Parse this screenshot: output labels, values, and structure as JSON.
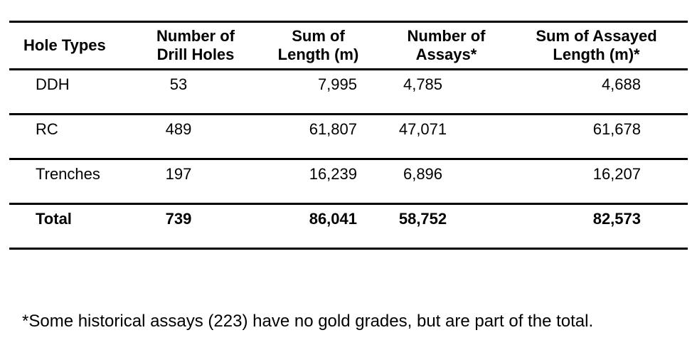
{
  "table": {
    "columns": [
      {
        "label_line1": "Hole Types"
      },
      {
        "label_line1": "Number of",
        "label_line2": "Drill Holes"
      },
      {
        "label_line1": "Sum of",
        "label_line2": "Length (m)"
      },
      {
        "label_line1": "Number of",
        "label_line2": "Assays*"
      },
      {
        "label_line1": "Sum of Assayed",
        "label_line2": "Length (m)*"
      }
    ],
    "rows": [
      {
        "hole_type": "DDH",
        "num_drill_holes": "53",
        "sum_length": "7,995",
        "num_assays": "4,785",
        "sum_assayed_length": "4,688"
      },
      {
        "hole_type": "RC",
        "num_drill_holes": "489",
        "sum_length": "61,807",
        "num_assays": "47,071",
        "sum_assayed_length": "61,678"
      },
      {
        "hole_type": "Trenches",
        "num_drill_holes": "197",
        "sum_length": "16,239",
        "num_assays": "6,896",
        "sum_assayed_length": "16,207"
      }
    ],
    "total_row": {
      "hole_type": "Total",
      "num_drill_holes": "739",
      "sum_length": "86,041",
      "num_assays": "58,752",
      "sum_assayed_length": "82,573"
    }
  },
  "footnote": "*Some historical assays (223) have no gold grades, but are part of the total.",
  "colors": {
    "text": "#000000",
    "background": "#ffffff",
    "rule": "#000000"
  }
}
